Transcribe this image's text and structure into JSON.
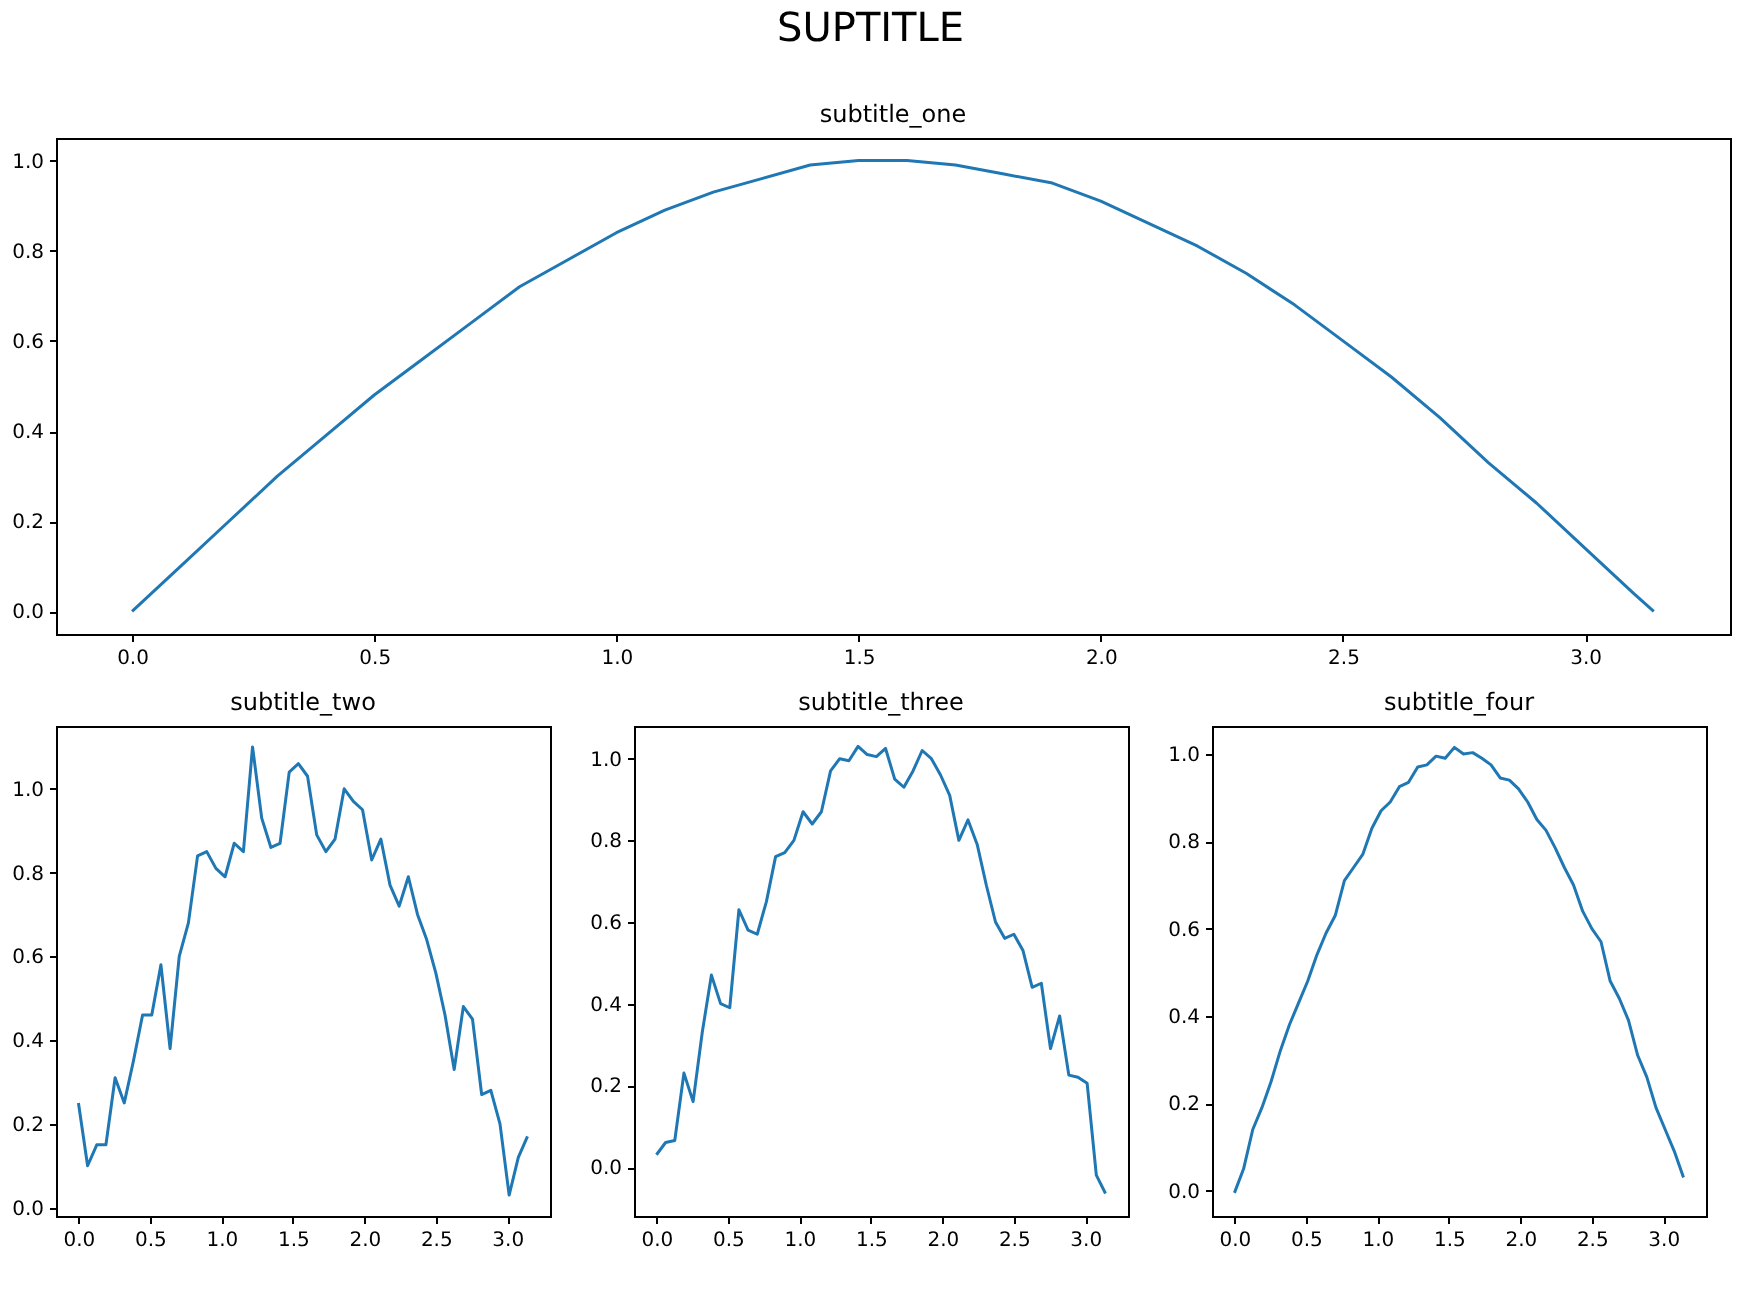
{
  "chart_data": [
    {
      "type": "line",
      "title": "SUPTITLE",
      "subtitle": "subtitle_one",
      "grid": false,
      "x": [
        0,
        0.1,
        0.2,
        0.3,
        0.4,
        0.5,
        0.6,
        0.7,
        0.8,
        0.9,
        1.0,
        1.1,
        1.2,
        1.3,
        1.4,
        1.5,
        1.5708,
        1.6,
        1.7,
        1.8,
        1.9,
        2.0,
        2.1,
        2.2,
        2.3,
        2.4,
        2.5,
        2.6,
        2.7,
        2.8,
        2.9,
        3.0,
        3.1,
        3.1416
      ],
      "series": [
        {
          "color": "#1f77b4",
          "values": [
            0,
            0.1,
            0.2,
            0.3,
            0.39,
            0.48,
            0.56,
            0.64,
            0.72,
            0.78,
            0.84,
            0.89,
            0.93,
            0.96,
            0.99,
            1.0,
            1.0,
            1.0,
            0.99,
            0.97,
            0.95,
            0.91,
            0.86,
            0.81,
            0.75,
            0.68,
            0.6,
            0.52,
            0.43,
            0.33,
            0.24,
            0.14,
            0.04,
            0
          ]
        }
      ],
      "xlim": [
        -0.157,
        3.299
      ],
      "ylim": [
        -0.05,
        1.05
      ],
      "xticks": [
        {
          "value": 0,
          "label": "0.0"
        },
        {
          "value": 0.5,
          "label": "0.5"
        },
        {
          "value": 1,
          "label": "1.0"
        },
        {
          "value": 1.5,
          "label": "1.5"
        },
        {
          "value": 2,
          "label": "2.0"
        },
        {
          "value": 2.5,
          "label": "2.5"
        },
        {
          "value": 3,
          "label": "3.0"
        }
      ],
      "yticks": [
        {
          "value": 0,
          "label": "0.0"
        },
        {
          "value": 0.2,
          "label": "0.2"
        },
        {
          "value": 0.4,
          "label": "0.4"
        },
        {
          "value": 0.6,
          "label": "0.6"
        },
        {
          "value": 0.8,
          "label": "0.8"
        },
        {
          "value": 1,
          "label": "1.0"
        }
      ]
    },
    {
      "type": "line",
      "subtitle": "subtitle_two",
      "grid": false,
      "x": [
        0,
        0.0641,
        0.1282,
        0.1923,
        0.2565,
        0.3206,
        0.3847,
        0.4488,
        0.5129,
        0.577,
        0.6411,
        0.7052,
        0.7693,
        0.8335,
        0.8976,
        0.9617,
        1.0258,
        1.0899,
        1.154,
        1.2181,
        1.2822,
        1.3464,
        1.4105,
        1.4746,
        1.5387,
        1.6028,
        1.6669,
        1.731,
        1.7951,
        1.8592,
        1.9234,
        1.9875,
        2.0516,
        2.1157,
        2.1798,
        2.2439,
        2.308,
        2.3721,
        2.4362,
        2.5004,
        2.5645,
        2.6286,
        2.6927,
        2.7568,
        2.8209,
        2.885,
        2.9491,
        3.0132,
        3.0774,
        3.1416
      ],
      "series": [
        {
          "color": "#1f77b4",
          "values": [
            0.25,
            0.1,
            0.15,
            0.15,
            0.31,
            0.25,
            0.35,
            0.46,
            0.46,
            0.58,
            0.38,
            0.6,
            0.68,
            0.84,
            0.85,
            0.81,
            0.79,
            0.87,
            0.85,
            1.1,
            0.93,
            0.86,
            0.87,
            1.04,
            1.06,
            1.03,
            0.89,
            0.85,
            0.88,
            1.0,
            0.97,
            0.95,
            0.83,
            0.88,
            0.77,
            0.72,
            0.79,
            0.7,
            0.64,
            0.56,
            0.46,
            0.33,
            0.48,
            0.45,
            0.27,
            0.28,
            0.2,
            0.03,
            0.12,
            0.17
          ]
        }
      ],
      "xlim": [
        -0.157,
        3.299
      ],
      "ylim": [
        -0.02,
        1.15
      ],
      "xticks": [
        {
          "value": 0,
          "label": "0.0"
        },
        {
          "value": 0.5,
          "label": "0.5"
        },
        {
          "value": 1,
          "label": "1.0"
        },
        {
          "value": 1.5,
          "label": "1.5"
        },
        {
          "value": 2,
          "label": "2.0"
        },
        {
          "value": 2.5,
          "label": "2.5"
        },
        {
          "value": 3,
          "label": "3.0"
        }
      ],
      "yticks": [
        {
          "value": 0,
          "label": "0.0"
        },
        {
          "value": 0.2,
          "label": "0.2"
        },
        {
          "value": 0.4,
          "label": "0.4"
        },
        {
          "value": 0.6,
          "label": "0.6"
        },
        {
          "value": 0.8,
          "label": "0.8"
        },
        {
          "value": 1,
          "label": "1.0"
        }
      ]
    },
    {
      "type": "line",
      "subtitle": "subtitle_three",
      "grid": false,
      "x": [
        0,
        0.0641,
        0.1282,
        0.1923,
        0.2565,
        0.3206,
        0.3847,
        0.4488,
        0.5129,
        0.577,
        0.6411,
        0.7052,
        0.7693,
        0.8335,
        0.8976,
        0.9617,
        1.0258,
        1.0899,
        1.154,
        1.2181,
        1.2822,
        1.3464,
        1.4105,
        1.4746,
        1.5387,
        1.6028,
        1.6669,
        1.731,
        1.7951,
        1.8592,
        1.9234,
        1.9875,
        2.0516,
        2.1157,
        2.1798,
        2.2439,
        2.308,
        2.3721,
        2.4362,
        2.5004,
        2.5645,
        2.6286,
        2.6927,
        2.7568,
        2.8209,
        2.885,
        2.9491,
        3.0132,
        3.0774,
        3.1416
      ],
      "series": [
        {
          "color": "#1f77b4",
          "values": [
            0.03,
            0.06,
            0.065,
            0.23,
            0.16,
            0.33,
            0.47,
            0.4,
            0.39,
            0.63,
            0.58,
            0.57,
            0.65,
            0.76,
            0.77,
            0.8,
            0.87,
            0.84,
            0.87,
            0.97,
            1.0,
            0.995,
            1.03,
            1.01,
            1.005,
            1.025,
            0.95,
            0.93,
            0.97,
            1.02,
            1.0,
            0.96,
            0.91,
            0.8,
            0.85,
            0.79,
            0.69,
            0.6,
            0.56,
            0.57,
            0.53,
            0.44,
            0.45,
            0.29,
            0.37,
            0.225,
            0.22,
            0.205,
            -0.02,
            -0.065
          ]
        }
      ],
      "xlim": [
        -0.157,
        3.299
      ],
      "ylim": [
        -0.12,
        1.08
      ],
      "xticks": [
        {
          "value": 0,
          "label": "0.0"
        },
        {
          "value": 0.5,
          "label": "0.5"
        },
        {
          "value": 1,
          "label": "1.0"
        },
        {
          "value": 1.5,
          "label": "1.5"
        },
        {
          "value": 2,
          "label": "2.0"
        },
        {
          "value": 2.5,
          "label": "2.5"
        },
        {
          "value": 3,
          "label": "3.0"
        }
      ],
      "yticks": [
        {
          "value": 0,
          "label": "0.0"
        },
        {
          "value": 0.2,
          "label": "0.2"
        },
        {
          "value": 0.4,
          "label": "0.4"
        },
        {
          "value": 0.6,
          "label": "0.6"
        },
        {
          "value": 0.8,
          "label": "0.8"
        },
        {
          "value": 1,
          "label": "1.0"
        }
      ]
    },
    {
      "type": "line",
      "subtitle": "subtitle_four",
      "grid": false,
      "x": [
        0,
        0.0641,
        0.1282,
        0.1923,
        0.2565,
        0.3206,
        0.3847,
        0.4488,
        0.5129,
        0.577,
        0.6411,
        0.7052,
        0.7693,
        0.8335,
        0.8976,
        0.9617,
        1.0258,
        1.0899,
        1.154,
        1.2181,
        1.2822,
        1.3464,
        1.4105,
        1.4746,
        1.5387,
        1.6028,
        1.6669,
        1.731,
        1.7951,
        1.8592,
        1.9234,
        1.9875,
        2.0516,
        2.1157,
        2.1798,
        2.2439,
        2.308,
        2.3721,
        2.4362,
        2.5004,
        2.5645,
        2.6286,
        2.6927,
        2.7568,
        2.8209,
        2.885,
        2.9491,
        3.0132,
        3.0774,
        3.1416
      ],
      "series": [
        {
          "color": "#1f77b4",
          "values": [
            -0.005,
            0.05,
            0.14,
            0.19,
            0.25,
            0.32,
            0.38,
            0.43,
            0.48,
            0.54,
            0.59,
            0.63,
            0.71,
            0.74,
            0.77,
            0.83,
            0.87,
            0.89,
            0.925,
            0.935,
            0.97,
            0.975,
            0.995,
            0.99,
            1.015,
            1.0,
            1.003,
            0.99,
            0.975,
            0.945,
            0.94,
            0.92,
            0.89,
            0.85,
            0.825,
            0.785,
            0.74,
            0.7,
            0.64,
            0.6,
            0.57,
            0.48,
            0.44,
            0.39,
            0.31,
            0.26,
            0.19,
            0.14,
            0.09,
            0.03
          ]
        }
      ],
      "xlim": [
        -0.157,
        3.299
      ],
      "ylim": [
        -0.058,
        1.064
      ],
      "xticks": [
        {
          "value": 0,
          "label": "0.0"
        },
        {
          "value": 0.5,
          "label": "0.5"
        },
        {
          "value": 1,
          "label": "1.0"
        },
        {
          "value": 1.5,
          "label": "1.5"
        },
        {
          "value": 2,
          "label": "2.0"
        },
        {
          "value": 2.5,
          "label": "2.5"
        },
        {
          "value": 3,
          "label": "3.0"
        }
      ],
      "yticks": [
        {
          "value": 0,
          "label": "0.0"
        },
        {
          "value": 0.2,
          "label": "0.2"
        },
        {
          "value": 0.4,
          "label": "0.4"
        },
        {
          "value": 0.6,
          "label": "0.6"
        },
        {
          "value": 0.8,
          "label": "0.8"
        },
        {
          "value": 1,
          "label": "1.0"
        }
      ]
    }
  ]
}
